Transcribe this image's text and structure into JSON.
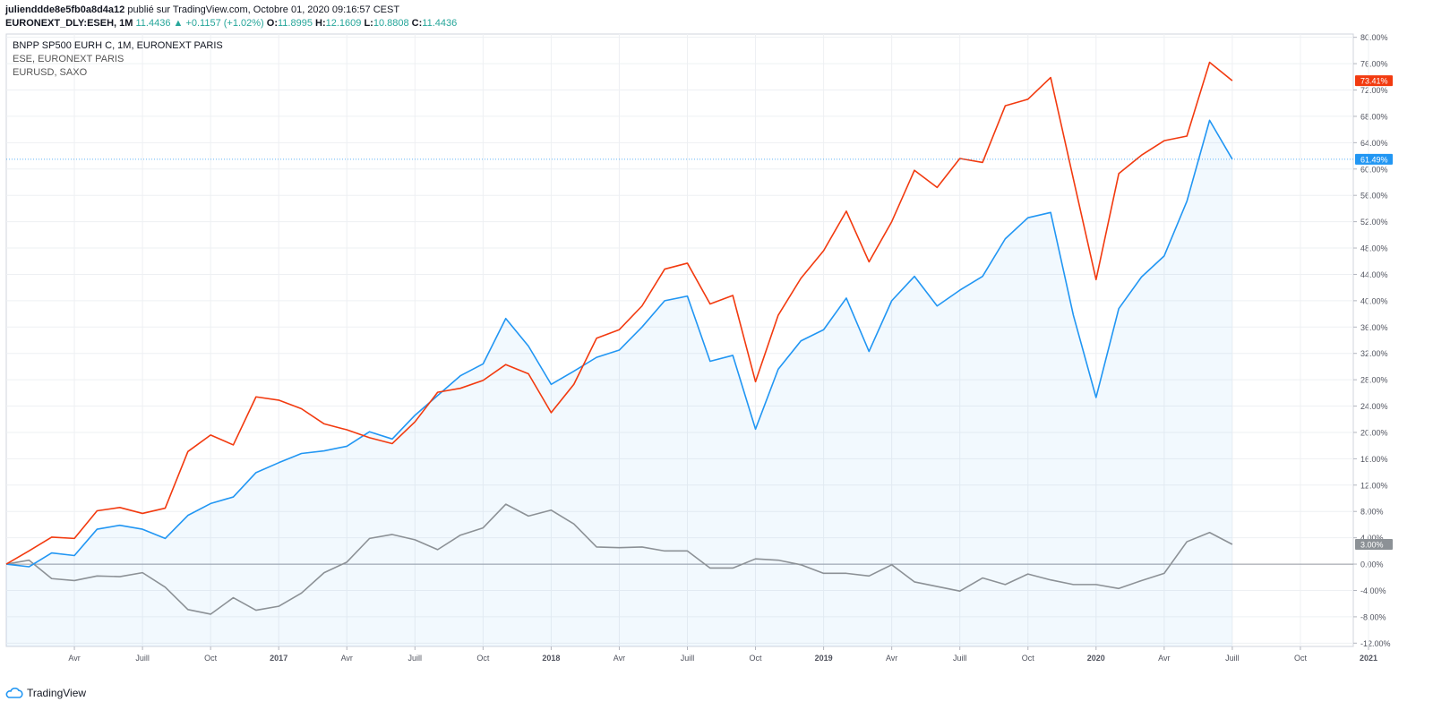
{
  "header": {
    "author": "julienddde8e5fb0a8d4a12",
    "published": "publié sur TradingView.com, Octobre 01, 2020 09:16:57 CEST",
    "symbol": "EURONEXT_DLY:ESEH, 1M",
    "last": "11.4436",
    "change": "+0.1157 (+1.02%)",
    "o_label": "O:",
    "o": "11.8995",
    "h_label": "H:",
    "h": "12.1609",
    "l_label": "L:",
    "l": "10.8808",
    "c_label": "C:",
    "c": "11.4436"
  },
  "legend": {
    "line1": "BNPP SP500 EURH C, 1M, EURONEXT PARIS",
    "line2": "ESE, EURONEXT PARIS",
    "line3": "EURUSD, SAXO"
  },
  "footer": {
    "brand": "TradingView"
  },
  "chart_data": {
    "type": "line",
    "x_ticks": [
      "Avr",
      "Juill",
      "Oct",
      "2017",
      "Avr",
      "Juill",
      "Oct",
      "2018",
      "Avr",
      "Juill",
      "Oct",
      "2019",
      "Avr",
      "Juill",
      "Oct",
      "2020",
      "Avr",
      "Juill",
      "Oct",
      "2021"
    ],
    "y_ticks": [
      "80.00%",
      "76.00%",
      "72.00%",
      "68.00%",
      "64.00%",
      "60.00%",
      "56.00%",
      "52.00%",
      "48.00%",
      "44.00%",
      "40.00%",
      "36.00%",
      "32.00%",
      "28.00%",
      "24.00%",
      "20.00%",
      "16.00%",
      "12.00%",
      "8.00%",
      "4.00%",
      "0.00%",
      "-4.00%",
      "-8.00%",
      "-12.00%"
    ],
    "ylim": [
      -12,
      80
    ],
    "x_start": "2016-01",
    "series": [
      {
        "name": "ESE, EURONEXT PARIS",
        "color": "#f23a0f",
        "values": [
          0,
          2,
          4.1,
          3.9,
          8.1,
          8.6,
          7.7,
          8.5,
          17.1,
          19.6,
          18.1,
          25.4,
          24.9,
          23.6,
          21.3,
          20.4,
          19.2,
          18.3,
          21.6,
          26.1,
          26.7,
          27.9,
          30.3,
          28.9,
          23,
          27.3,
          34.3,
          35.6,
          39.2,
          44.8,
          45.7,
          39.5,
          40.8,
          27.7,
          37.8,
          43.4,
          47.6,
          53.6,
          45.9,
          52,
          59.8,
          57.2,
          61.6,
          61,
          69.6,
          70.6,
          73.9,
          58.5,
          43.2,
          59.3,
          62.1,
          64.3,
          65,
          76.2,
          73.41
        ]
      },
      {
        "name": "BNPP SP500 EURH C, 1M, EURONEXT PARIS",
        "color": "#2196f3",
        "values": [
          0,
          -0.4,
          1.7,
          1.3,
          5.3,
          5.9,
          5.3,
          3.9,
          7.4,
          9.2,
          10.2,
          13.9,
          15.4,
          16.8,
          17.2,
          17.9,
          20.1,
          19,
          22.6,
          25.6,
          28.6,
          30.4,
          37.3,
          33.1,
          27.3,
          29.3,
          31.4,
          32.5,
          36,
          40,
          40.7,
          30.8,
          31.7,
          20.5,
          29.6,
          33.9,
          35.6,
          40.4,
          32.3,
          40,
          43.7,
          39.2,
          41.6,
          43.7,
          49.4,
          52.6,
          53.4,
          37.8,
          25.3,
          38.8,
          43.6,
          46.8,
          55.1,
          67.4,
          61.49
        ]
      },
      {
        "name": "EURUSD, SAXO",
        "color": "#8c9196",
        "values": [
          0,
          0.6,
          -2.2,
          -2.5,
          -1.8,
          -1.9,
          -1.3,
          -3.5,
          -6.9,
          -7.6,
          -5.1,
          -7,
          -6.4,
          -4.4,
          -1.3,
          0.3,
          3.9,
          4.5,
          3.7,
          2.2,
          4.4,
          5.5,
          9.1,
          7.3,
          8.2,
          6.1,
          2.6,
          2.5,
          2.6,
          2,
          2,
          -0.6,
          -0.6,
          0.8,
          0.6,
          -0.1,
          -1.4,
          -1.4,
          -1.8,
          -0.1,
          -2.7,
          -3.4,
          -4.1,
          -2.1,
          -3.1,
          -1.5,
          -2.4,
          -3.1,
          -3.1,
          -3.7,
          -2.5,
          -1.4,
          3.4,
          4.8,
          3
        ]
      }
    ],
    "last_labels": [
      "73.41%",
      "61.49%",
      "3.00%"
    ],
    "grid": true
  }
}
